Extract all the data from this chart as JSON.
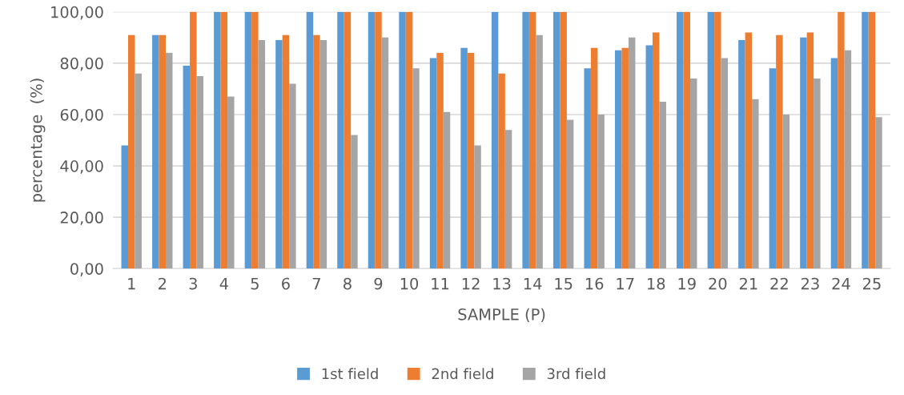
{
  "chart_data": {
    "type": "bar",
    "xlabel": "SAMPLE (P)",
    "ylabel": "percentage  (%)",
    "categories": [
      "1",
      "2",
      "3",
      "4",
      "5",
      "6",
      "7",
      "8",
      "9",
      "10",
      "11",
      "12",
      "13",
      "14",
      "15",
      "16",
      "17",
      "18",
      "19",
      "20",
      "21",
      "22",
      "23",
      "24",
      "25"
    ],
    "series": [
      {
        "name": "1st field",
        "color": "#5b9bd5",
        "values": [
          48,
          91,
          79,
          100,
          100,
          89,
          100,
          100,
          100,
          100,
          82,
          86,
          100,
          100,
          100,
          78,
          85,
          87,
          100,
          100,
          89,
          78,
          90,
          82,
          100
        ]
      },
      {
        "name": "2nd field",
        "color": "#ed7d31",
        "values": [
          91,
          91,
          100,
          100,
          100,
          91,
          91,
          100,
          100,
          100,
          84,
          84,
          76,
          100,
          100,
          86,
          86,
          92,
          100,
          100,
          92,
          91,
          92,
          100,
          100
        ]
      },
      {
        "name": "3rd field",
        "color": "#a5a5a5",
        "values": [
          76,
          84,
          75,
          67,
          89,
          72,
          89,
          52,
          90,
          78,
          61,
          48,
          54,
          91,
          58,
          60,
          90,
          65,
          74,
          82,
          66,
          60,
          74,
          85,
          59
        ]
      }
    ],
    "ylim": [
      0,
      100
    ],
    "yticks": [
      {
        "value": 0,
        "label": "0,00"
      },
      {
        "value": 20,
        "label": "20,00"
      },
      {
        "value": 40,
        "label": "40,00"
      },
      {
        "value": 60,
        "label": "60,00"
      },
      {
        "value": 80,
        "label": "80,00"
      },
      {
        "value": 100,
        "label": "100,00"
      }
    ],
    "grid": "y",
    "legend": "bottom"
  }
}
